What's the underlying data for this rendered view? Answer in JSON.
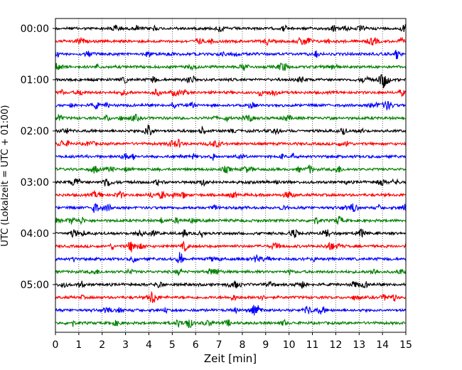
{
  "chart_data": {
    "type": "line",
    "title": "",
    "xlabel": "Zeit  [min]",
    "ylabel": "UTC (Lokalzeit = UTC + 01:00)",
    "xlim": [
      0,
      15
    ],
    "x_ticks": [
      0,
      1,
      2,
      3,
      4,
      5,
      6,
      7,
      8,
      9,
      10,
      11,
      12,
      13,
      14,
      15
    ],
    "x_tick_labels": [
      "0",
      "1",
      "2",
      "3",
      "4",
      "5",
      "6",
      "7",
      "8",
      "9",
      "10",
      "11",
      "12",
      "13",
      "14",
      "15"
    ],
    "y_tick_labels": [
      "00:00",
      "01:00",
      "02:00",
      "03:00",
      "04:00",
      "05:00"
    ],
    "y_tick_traces": [
      0,
      4,
      8,
      12,
      16,
      20
    ],
    "grid": "vertical dotted",
    "trace_minutes": 15,
    "trace_colors": [
      "#000000",
      "#ff0000",
      "#0000ff",
      "#008000"
    ],
    "traces": [
      {
        "start": "00:00",
        "color": "#000000"
      },
      {
        "start": "00:15",
        "color": "#ff0000"
      },
      {
        "start": "00:30",
        "color": "#0000ff"
      },
      {
        "start": "00:45",
        "color": "#008000"
      },
      {
        "start": "01:00",
        "color": "#000000"
      },
      {
        "start": "01:15",
        "color": "#ff0000"
      },
      {
        "start": "01:30",
        "color": "#0000ff"
      },
      {
        "start": "01:45",
        "color": "#008000"
      },
      {
        "start": "02:00",
        "color": "#000000"
      },
      {
        "start": "02:15",
        "color": "#ff0000"
      },
      {
        "start": "02:30",
        "color": "#0000ff"
      },
      {
        "start": "02:45",
        "color": "#008000"
      },
      {
        "start": "03:00",
        "color": "#000000"
      },
      {
        "start": "03:15",
        "color": "#ff0000"
      },
      {
        "start": "03:30",
        "color": "#0000ff"
      },
      {
        "start": "03:45",
        "color": "#008000"
      },
      {
        "start": "04:00",
        "color": "#000000"
      },
      {
        "start": "04:15",
        "color": "#ff0000"
      },
      {
        "start": "04:30",
        "color": "#0000ff"
      },
      {
        "start": "04:45",
        "color": "#008000"
      },
      {
        "start": "05:00",
        "color": "#000000"
      },
      {
        "start": "05:15",
        "color": "#ff0000"
      },
      {
        "start": "05:30",
        "color": "#0000ff"
      },
      {
        "start": "05:45",
        "color": "#008000"
      }
    ]
  }
}
